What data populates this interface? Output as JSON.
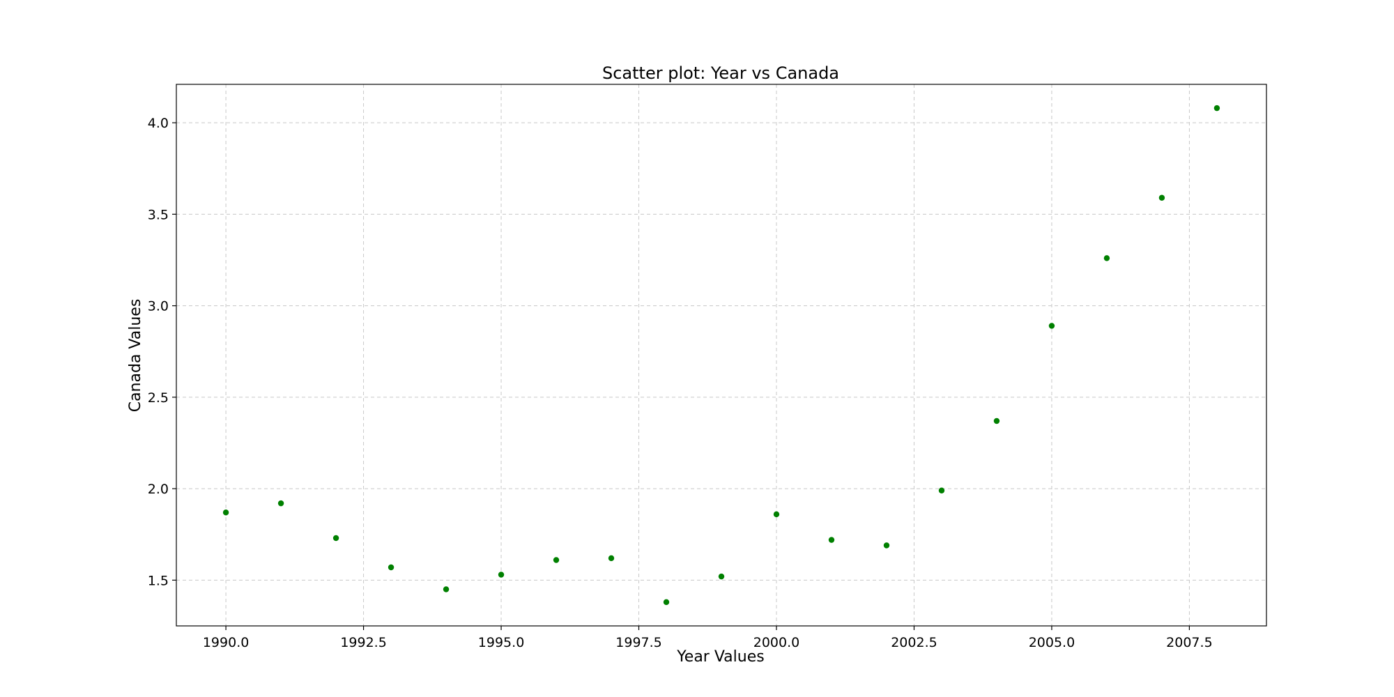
{
  "chart_data": {
    "type": "scatter",
    "title": "Scatter plot: Year vs Canada",
    "xlabel": "Year Values",
    "ylabel": "Canada Values",
    "xlim": [
      1989.1,
      2008.9
    ],
    "ylim": [
      1.25,
      4.21
    ],
    "xticks": [
      1990.0,
      1992.5,
      1995.0,
      1997.5,
      2000.0,
      2002.5,
      2005.0,
      2007.5
    ],
    "xtick_labels": [
      "1990.0",
      "1992.5",
      "1995.0",
      "1997.5",
      "2000.0",
      "2002.5",
      "2005.0",
      "2007.5"
    ],
    "yticks": [
      1.5,
      2.0,
      2.5,
      3.0,
      3.5,
      4.0
    ],
    "ytick_labels": [
      "1.5",
      "2.0",
      "2.5",
      "3.0",
      "3.5",
      "4.0"
    ],
    "grid": true,
    "marker_color": "#008000",
    "series": [
      {
        "x": [
          1990,
          1991,
          1992,
          1993,
          1994,
          1995,
          1996,
          1997,
          1998,
          1999,
          2000,
          2001,
          2002,
          2003,
          2004,
          2005,
          2006,
          2007,
          2008
        ],
        "y": [
          1.87,
          1.92,
          1.73,
          1.57,
          1.45,
          1.53,
          1.61,
          1.62,
          1.38,
          1.52,
          1.86,
          1.72,
          1.69,
          1.99,
          2.37,
          2.89,
          3.26,
          3.59,
          4.08
        ]
      }
    ]
  }
}
